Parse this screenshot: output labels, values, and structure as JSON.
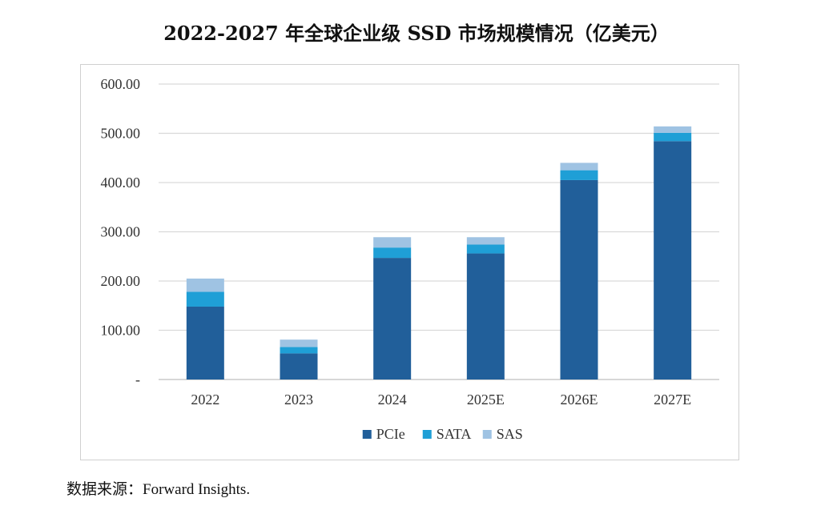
{
  "title": "2022-2027 年全球企业级 SSD 市场规模情况（亿美元）",
  "source": {
    "label": "数据来源：",
    "text": "Forward Insights."
  },
  "colors": {
    "PCIe": "#215f9a",
    "SATA": "#1f9fd6",
    "SAS": "#9fc3e3",
    "grid": "#d9d9d9",
    "axis": "#bfbfbf",
    "text": "#333333"
  },
  "chart_data": {
    "type": "bar",
    "stacked": true,
    "title": "2022-2027 年全球企业级 SSD 市场规模情况（亿美元）",
    "xlabel": "",
    "ylabel": "",
    "categories": [
      "2022",
      "2023",
      "2024",
      "2025E",
      "2026E",
      "2027E"
    ],
    "series": [
      {
        "name": "PCIe",
        "values": [
          148,
          53,
          247,
          256,
          405,
          484
        ]
      },
      {
        "name": "SATA",
        "values": [
          30,
          13,
          21,
          18,
          20,
          17
        ]
      },
      {
        "name": "SAS",
        "values": [
          27,
          15,
          21,
          15,
          15,
          13
        ]
      }
    ],
    "ylim": [
      0,
      600
    ],
    "yticks": [
      0,
      100,
      200,
      300,
      400,
      500,
      600
    ],
    "ytick_labels": [
      "-",
      "100.00",
      "200.00",
      "300.00",
      "400.00",
      "500.00",
      "600.00"
    ],
    "grid": true,
    "legend": "bottom-center"
  }
}
